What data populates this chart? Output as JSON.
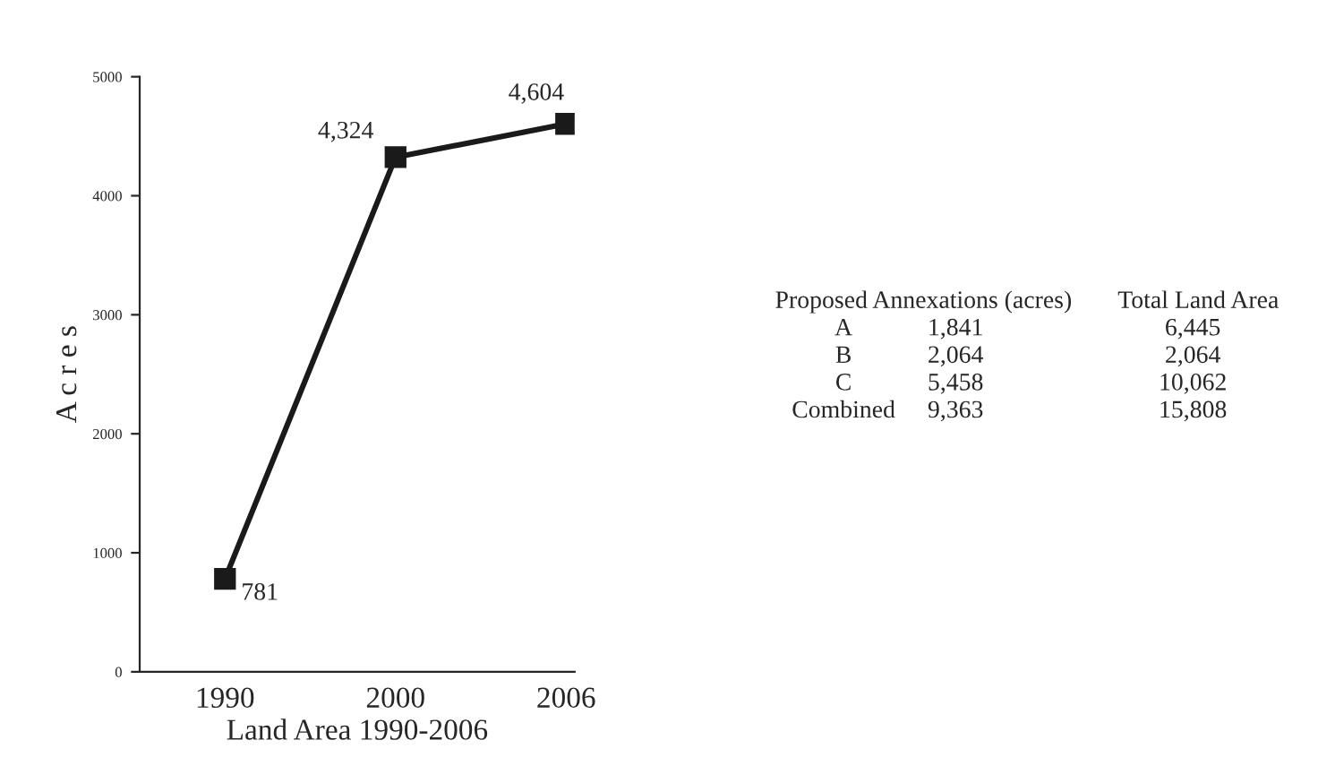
{
  "chart_data": {
    "type": "line",
    "xlabel": "Land Area 1990-2006",
    "ylabel": "A c r e s",
    "categories": [
      "1990",
      "2000",
      "2006"
    ],
    "series": [
      {
        "color": "#1a1a1a",
        "values": [
          781,
          4324,
          4604
        ],
        "value_labels": [
          "781",
          "4,324",
          "4,604"
        ]
      }
    ],
    "ylim": [
      0,
      5000
    ],
    "yticks": [
      0,
      1000,
      2000,
      3000,
      4000,
      5000
    ],
    "marker": "square",
    "line_style": "solid",
    "grid": false,
    "legend": false,
    "annotations": [
      "Proposed Annexations (acres)",
      "Total Land Area",
      "A",
      "1,841",
      "6,445",
      "B",
      "2,064",
      "2,064",
      "C",
      "5,458",
      "10,062",
      "Combined",
      "9,363",
      "15,808"
    ]
  }
}
